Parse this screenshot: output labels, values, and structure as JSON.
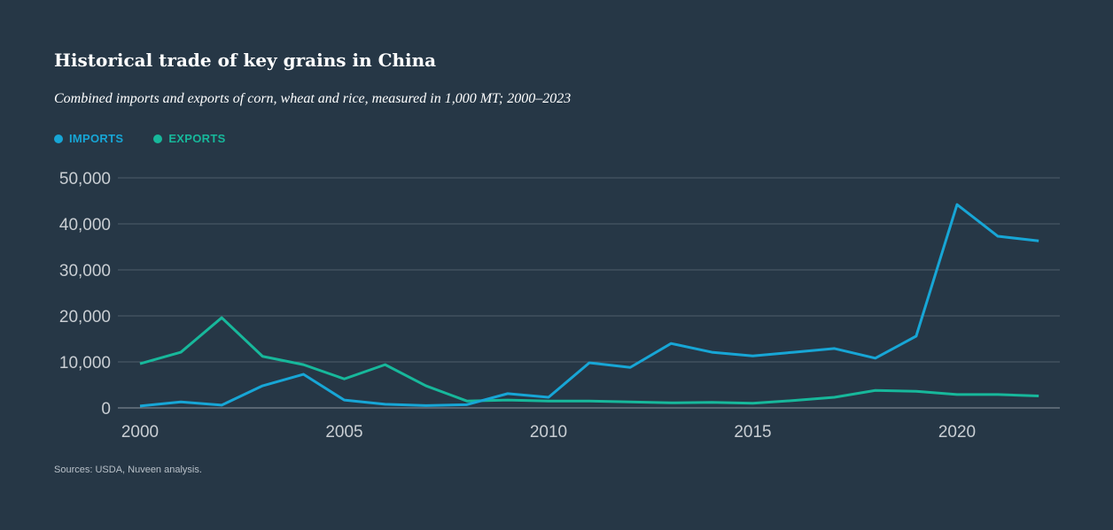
{
  "title": "Historical trade of key grains in China",
  "subtitle": "Combined imports and exports of corn, wheat and rice, measured in 1,000 MT; 2000–2023",
  "source": "Sources: USDA, Nuveen analysis.",
  "chart_data": {
    "type": "line",
    "title": "Historical trade of key grains in China",
    "xlabel": "",
    "ylabel": "",
    "x": [
      2000,
      2001,
      2002,
      2003,
      2004,
      2005,
      2006,
      2007,
      2008,
      2009,
      2010,
      2011,
      2012,
      2013,
      2014,
      2015,
      2016,
      2017,
      2018,
      2019,
      2020,
      2021,
      2022
    ],
    "xlim": [
      2000,
      2022.5
    ],
    "ylim": [
      0,
      50000
    ],
    "x_ticks": [
      2000,
      2005,
      2010,
      2015,
      2020
    ],
    "x_tick_labels": [
      "2000",
      "2005",
      "2010",
      "2015",
      "2020"
    ],
    "y_ticks": [
      0,
      10000,
      20000,
      30000,
      40000,
      50000
    ],
    "y_tick_labels": [
      "0",
      "10,000",
      "20,000",
      "30,000",
      "40,000",
      "50,000"
    ],
    "grid": true,
    "legend_position": "top-left",
    "series": [
      {
        "name": "IMPORTS",
        "color": "#17a6d6",
        "values": [
          400,
          1300,
          600,
          4800,
          7300,
          1700,
          800,
          500,
          700,
          3100,
          2300,
          9800,
          8800,
          14000,
          12100,
          11300,
          12100,
          12900,
          10800,
          15600,
          44200,
          37300,
          36300
        ]
      },
      {
        "name": "EXPORTS",
        "color": "#17b89b",
        "values": [
          9600,
          12100,
          19600,
          11200,
          9400,
          6300,
          9400,
          4800,
          1500,
          1700,
          1500,
          1500,
          1300,
          1100,
          1200,
          1000,
          1600,
          2300,
          3800,
          3600,
          2900,
          2900,
          2600
        ]
      }
    ]
  }
}
